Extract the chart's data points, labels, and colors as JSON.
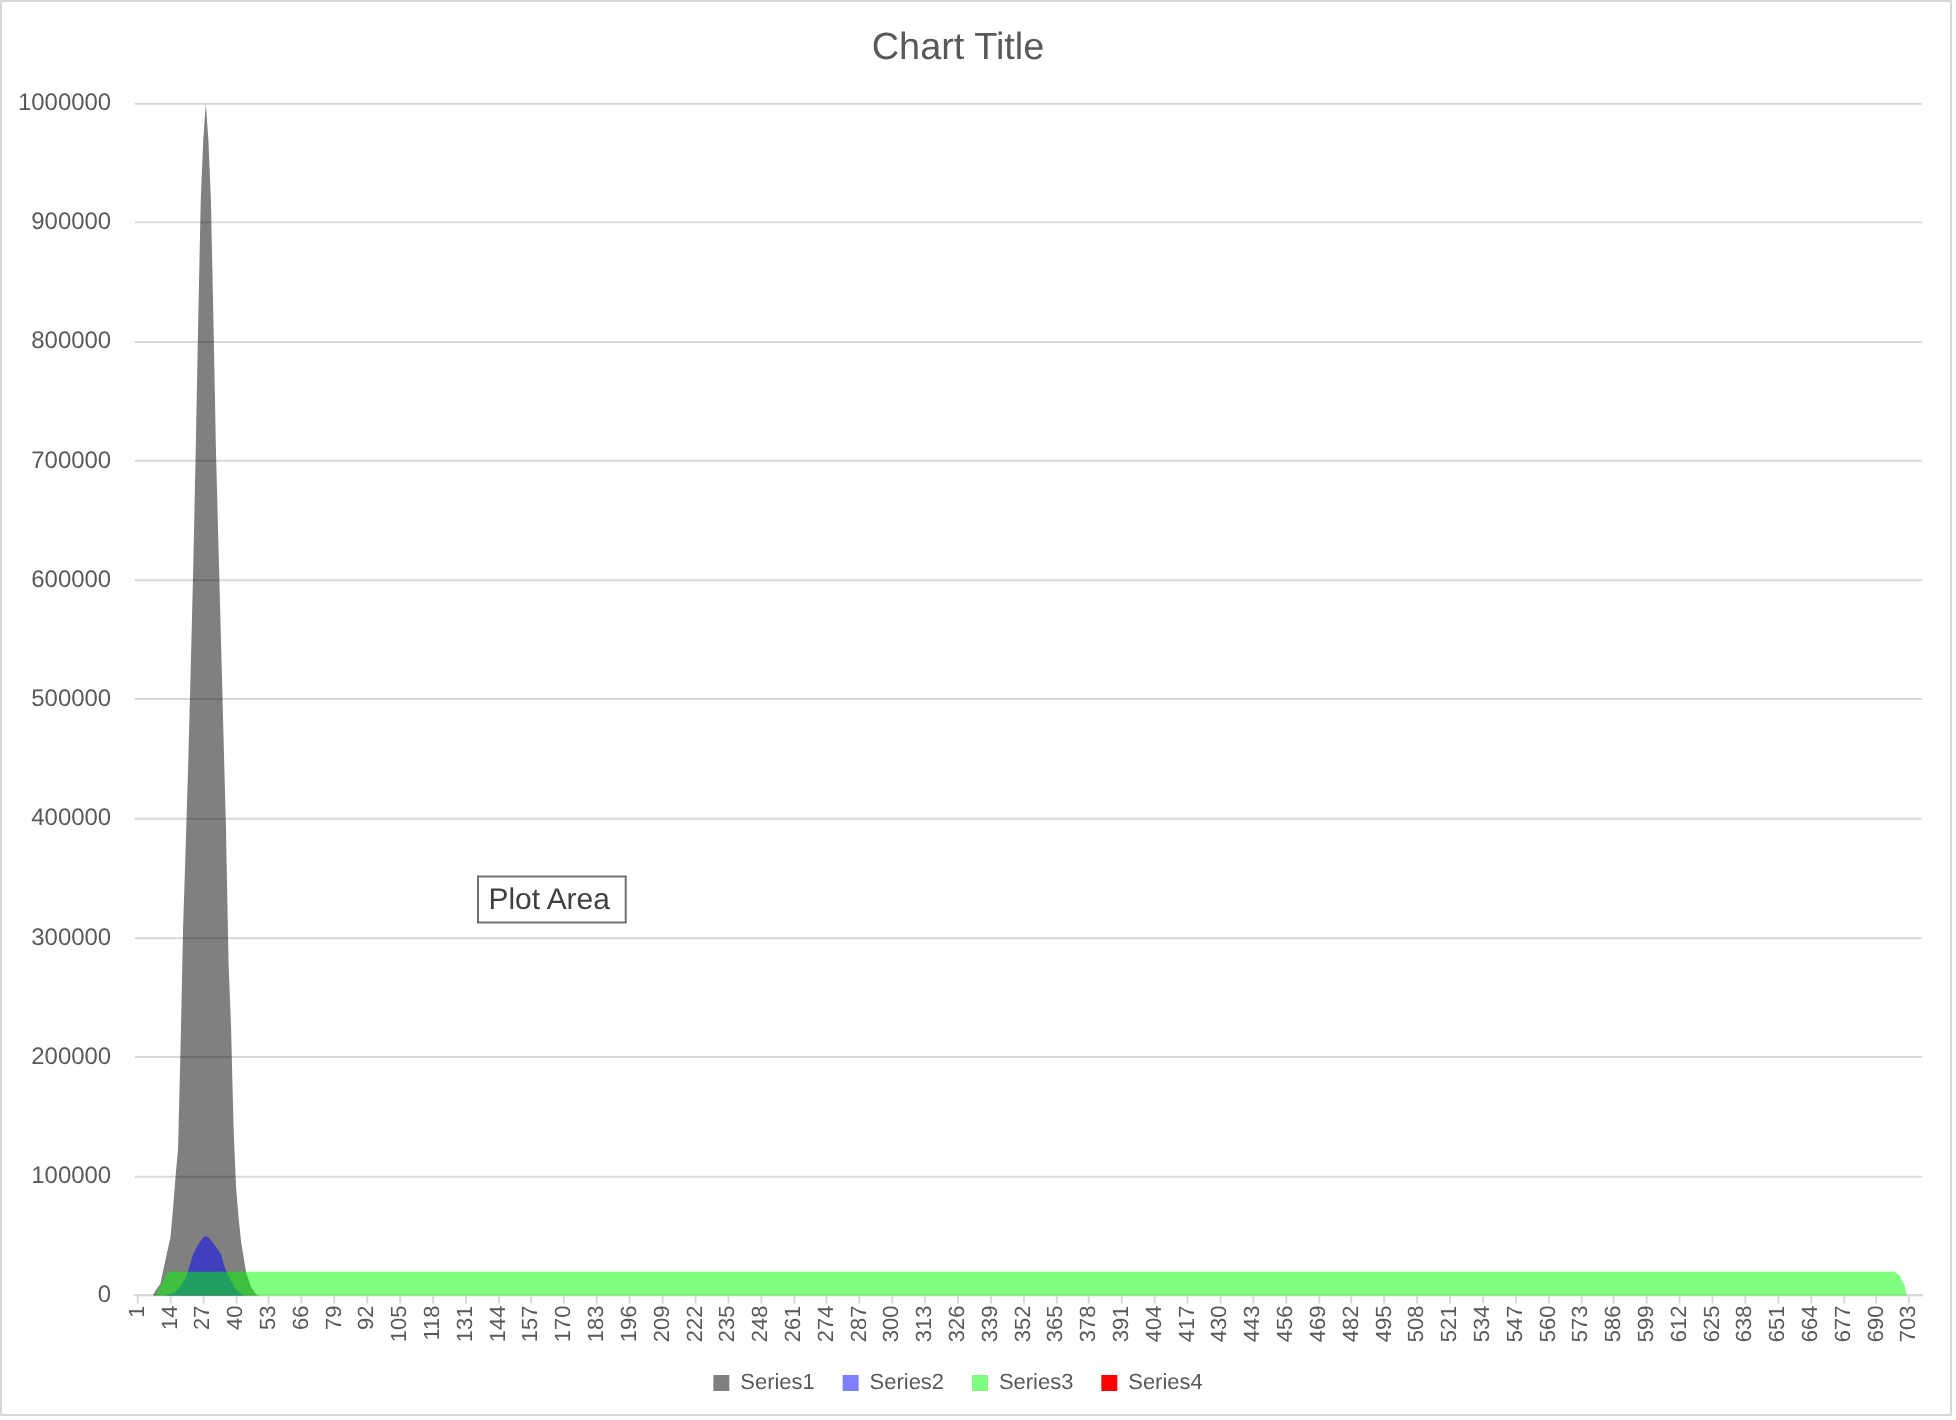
{
  "chart_data": {
    "type": "area",
    "title": "Chart Title",
    "annotations": [
      "Plot Area"
    ],
    "xlim": [
      0,
      708
    ],
    "xticks": [
      1,
      14,
      27,
      40,
      53,
      66,
      79,
      92,
      105,
      118,
      131,
      144,
      157,
      170,
      183,
      196,
      209,
      222,
      235,
      248,
      261,
      274,
      287,
      300,
      313,
      326,
      339,
      352,
      365,
      378,
      391,
      404,
      417,
      430,
      443,
      456,
      469,
      482,
      495,
      508,
      521,
      534,
      547,
      560,
      573,
      586,
      599,
      612,
      625,
      638,
      651,
      664,
      677,
      690,
      703
    ],
    "ylim": [
      0,
      1000000
    ],
    "yticks": [
      0,
      100000,
      200000,
      300000,
      400000,
      500000,
      600000,
      700000,
      800000,
      900000,
      1000000
    ],
    "grid": "y",
    "legend": "bottom",
    "series": [
      {
        "name": "Series1",
        "color": "#808080",
        "x": [
          7,
          8,
          10,
          12,
          14,
          15,
          16,
          17,
          18,
          19,
          20,
          21,
          22,
          23,
          24,
          25,
          26,
          27,
          28,
          29,
          30,
          31,
          32,
          33,
          34,
          35,
          36,
          37,
          38,
          39,
          40,
          41,
          42,
          44,
          46,
          48,
          49
        ],
        "values": [
          0,
          4000,
          10000,
          30000,
          49000,
          73000,
          100000,
          123000,
          210000,
          310000,
          375000,
          445000,
          525000,
          610000,
          710000,
          820000,
          920000,
          970000,
          1000000,
          970000,
          920000,
          820000,
          710000,
          630000,
          550000,
          470000,
          390000,
          280000,
          225000,
          140000,
          90000,
          65000,
          45000,
          19000,
          7000,
          1000,
          0
        ]
      },
      {
        "name": "Series2",
        "color": "#8080ff",
        "x": [
          12,
          16,
          18,
          20,
          21,
          22,
          23,
          25,
          27,
          28,
          29,
          31,
          33,
          34,
          35,
          36,
          38,
          40,
          43
        ],
        "values": [
          0,
          3000,
          8000,
          15000,
          21000,
          28000,
          35000,
          43000,
          49000,
          50000,
          49000,
          44000,
          38000,
          35000,
          27000,
          21000,
          12000,
          5000,
          0
        ]
      },
      {
        "name": "Series3",
        "color": "#80ff80",
        "x": [
          8,
          10,
          13,
          697,
          699,
          701,
          702
        ],
        "values": [
          0,
          8000,
          20000,
          20000,
          17000,
          9000,
          0
        ]
      },
      {
        "name": "Series4",
        "color": "#ff0000"
      }
    ]
  }
}
